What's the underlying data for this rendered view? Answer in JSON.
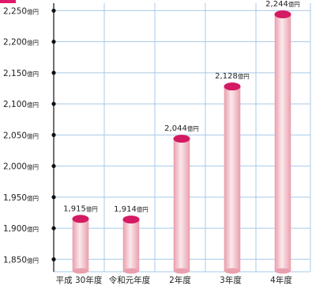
{
  "chart_data": {
    "type": "bar",
    "unit": "億円",
    "categories": [
      "平成 30年度",
      "令和元年度",
      "2年度",
      "3年度",
      "4年度"
    ],
    "values": [
      1915,
      1914,
      2044,
      2128,
      2244
    ],
    "value_labels": [
      "1,915",
      "1,914",
      "2,044",
      "2,128",
      "2,244"
    ],
    "ylim": [
      1830,
      2262
    ],
    "yticks": [
      1850,
      1900,
      1950,
      2000,
      2050,
      2100,
      2150,
      2200,
      2250
    ],
    "ytick_labels": [
      "1,850",
      "1,900",
      "1,950",
      "2,000",
      "2,050",
      "2,100",
      "2,150",
      "2,200",
      "2,250"
    ],
    "grid": true,
    "colors": {
      "bar_cap": "#d41a62",
      "bar_edge": "#e9a0ae",
      "bar_light": "#fbe9ec",
      "grid": "#a9c9e8",
      "axis": "#111111",
      "corner_tab": "#e01a6a"
    }
  }
}
